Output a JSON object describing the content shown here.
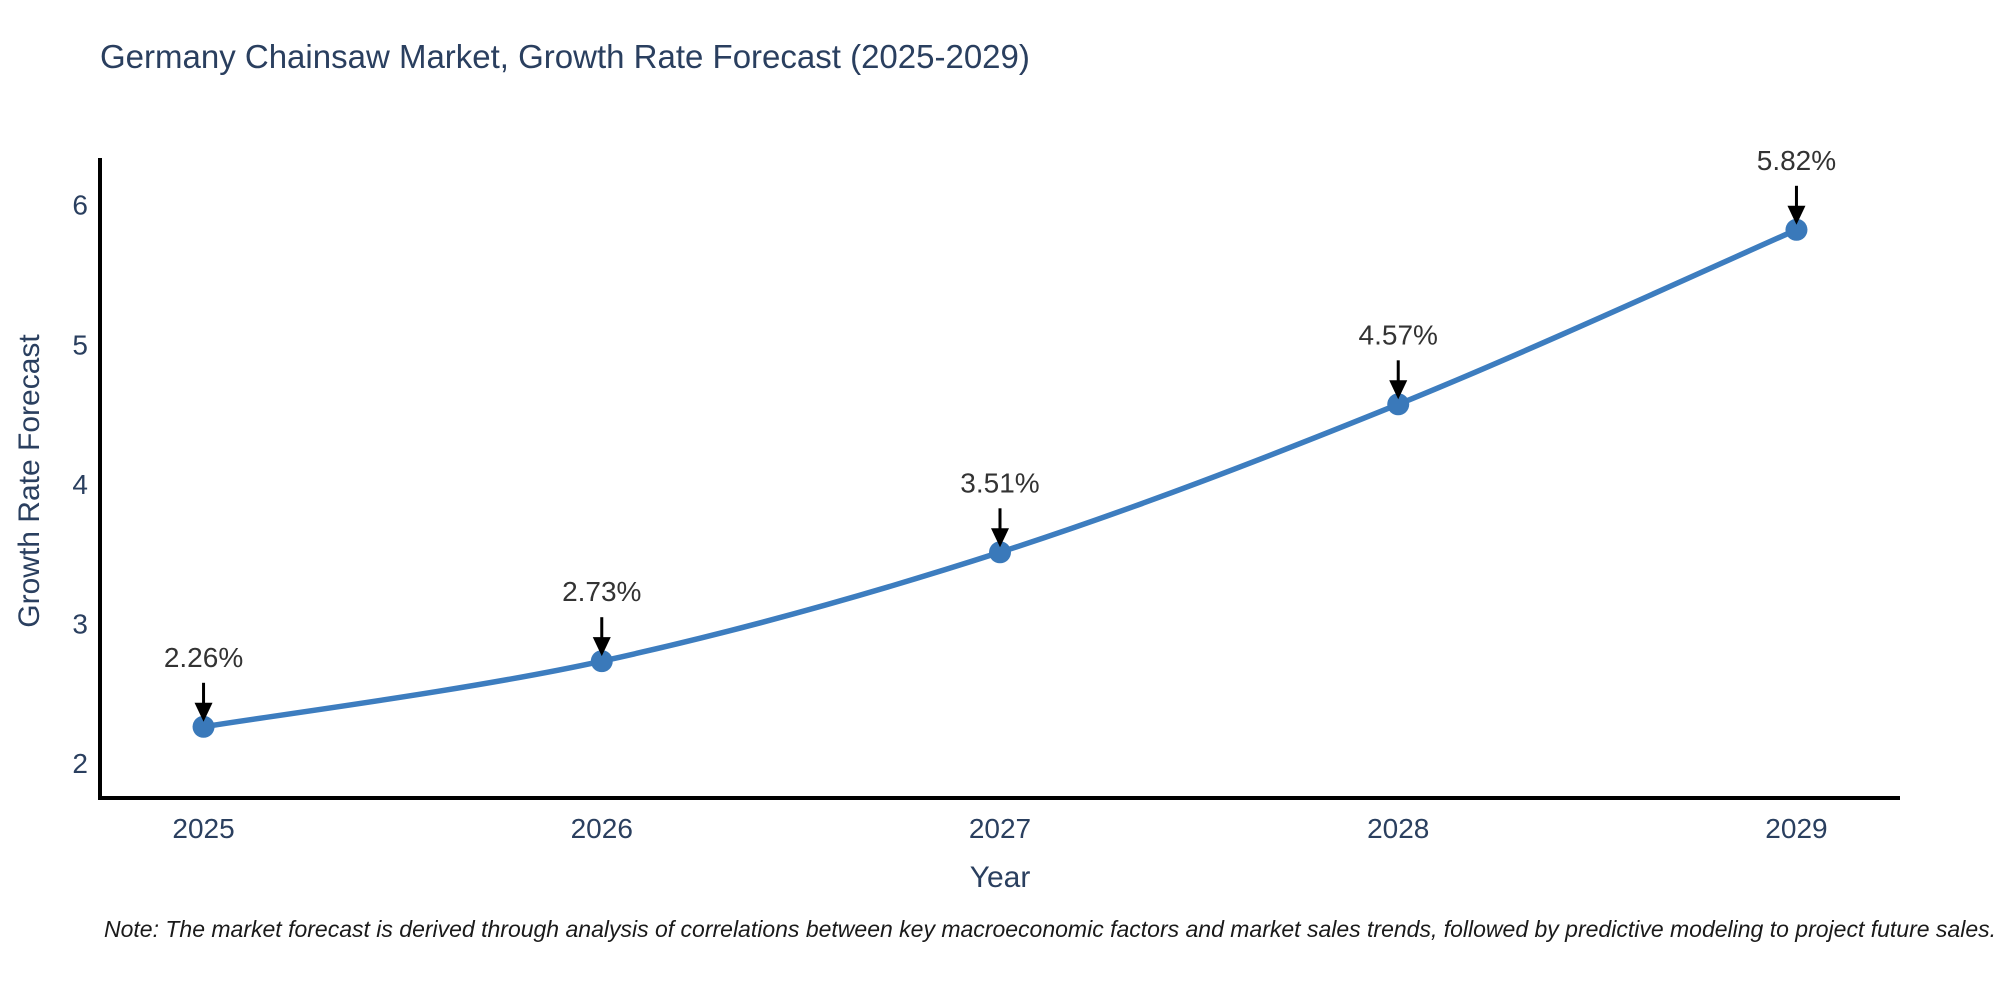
{
  "chart_data": {
    "type": "line",
    "title": "Germany Chainsaw Market, Growth Rate Forecast (2025-2029)",
    "xlabel": "Year",
    "ylabel": "Growth Rate Forecast",
    "x": [
      2025,
      2026,
      2027,
      2028,
      2029
    ],
    "values": [
      2.26,
      2.73,
      3.51,
      4.57,
      5.82
    ],
    "point_labels": [
      "2.26%",
      "2.73%",
      "3.51%",
      "4.57%",
      "5.82%"
    ],
    "xticks": [
      "2025",
      "2026",
      "2027",
      "2028",
      "2029"
    ],
    "yticks": [
      2,
      3,
      4,
      5,
      6
    ],
    "xlim": [
      2024.74,
      2029.26
    ],
    "ylim": [
      1.75,
      6.32
    ],
    "grid": false,
    "legend": "none",
    "note": "Note: The market forecast is derived through analysis of correlations between key macroeconomic factors and market sales trends, followed by predictive modeling to project future sales.",
    "colors": {
      "line": "#3d7dbf",
      "marker": "#3a79ba",
      "annotation_text": "#333333",
      "annotation_arrow": "#000000",
      "axis_text": "#2a3f5f",
      "title_text": "#2a3f5f",
      "spine": "#000000"
    }
  }
}
